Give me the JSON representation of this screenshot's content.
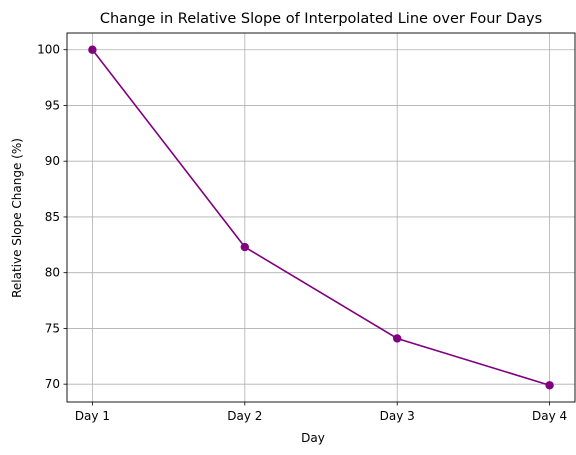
{
  "chart_data": {
    "type": "line",
    "title": "Change in Relative Slope of Interpolated Line over Four Days",
    "xlabel": "Day",
    "ylabel": "Relative Slope Change (%)",
    "categories": [
      "Day 1",
      "Day 2",
      "Day 3",
      "Day 4"
    ],
    "series": [
      {
        "values": [
          100.0,
          82.3,
          74.1,
          69.9
        ],
        "color": "#800080",
        "marker": "circle"
      }
    ],
    "ylim": [
      68.4,
      101.5
    ],
    "yticks": [
      70,
      75,
      80,
      85,
      90,
      95,
      100
    ],
    "grid": true
  }
}
